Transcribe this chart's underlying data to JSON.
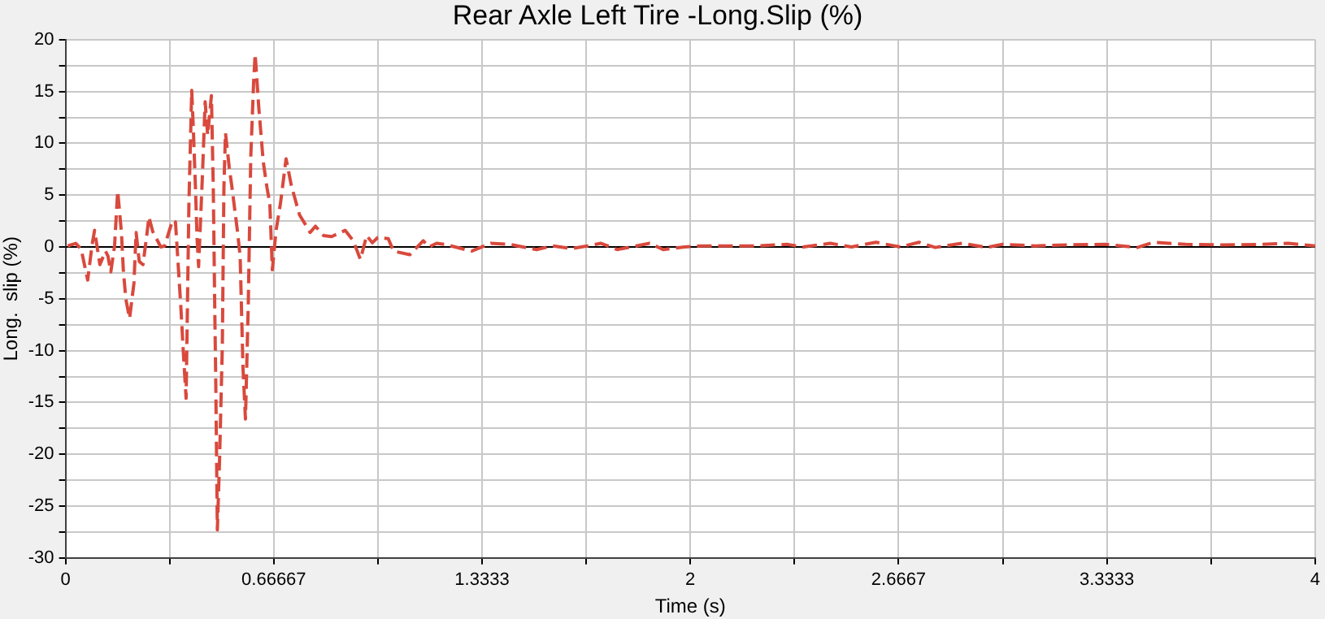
{
  "chart_data": {
    "type": "line",
    "title": "Rear Axle Left Tire -Long.Slip (%)",
    "xlabel": "Time (s)",
    "ylabel": "Long.  slip (%)",
    "xlim": [
      0,
      4
    ],
    "ylim": [
      -30,
      20
    ],
    "xticks": [
      0,
      {
        "value": 0.33333,
        "label": null
      },
      0.66667,
      {
        "value": 1,
        "label": null
      },
      1.3333,
      {
        "value": 1.66667,
        "label": null
      },
      2,
      {
        "value": 2.33333,
        "label": null
      },
      2.6667,
      {
        "value": 3,
        "label": null
      },
      3.3333,
      {
        "value": 3.66667,
        "label": null
      },
      4
    ],
    "yticks": [
      -30,
      {
        "value": -27.5,
        "label": null
      },
      -25,
      {
        "value": -22.5,
        "label": null
      },
      -20,
      {
        "value": -17.5,
        "label": null
      },
      -15,
      {
        "value": -12.5,
        "label": null
      },
      -10,
      {
        "value": -7.5,
        "label": null
      },
      -5,
      {
        "value": -2.5,
        "label": null
      },
      0,
      {
        "value": 2.5,
        "label": null
      },
      5,
      {
        "value": 7.5,
        "label": null
      },
      10,
      {
        "value": 12.5,
        "label": null
      },
      15,
      {
        "value": 17.5,
        "label": null
      },
      20
    ],
    "grid": true,
    "legend": false,
    "marker": "none",
    "line_style": "dashed",
    "ref_lines": [
      {
        "axis": "y",
        "value": 0,
        "color": "#000000"
      }
    ],
    "series": [
      {
        "color": "#d9493d",
        "x": [
          0.007,
          0.033,
          0.05,
          0.064,
          0.071,
          0.085,
          0.093,
          0.11,
          0.128,
          0.136,
          0.145,
          0.157,
          0.167,
          0.179,
          0.185,
          0.193,
          0.205,
          0.219,
          0.226,
          0.236,
          0.248,
          0.26,
          0.267,
          0.279,
          0.305,
          0.317,
          0.343,
          0.352,
          0.369,
          0.378,
          0.386,
          0.395,
          0.404,
          0.409,
          0.416,
          0.421,
          0.426,
          0.438,
          0.447,
          0.455,
          0.467,
          0.473,
          0.478,
          0.481,
          0.486,
          0.493,
          0.502,
          0.507,
          0.512,
          0.524,
          0.533,
          0.55,
          0.559,
          0.568,
          0.576,
          0.585,
          0.593,
          0.602,
          0.607,
          0.619,
          0.633,
          0.645,
          0.654,
          0.662,
          0.674,
          0.688,
          0.706,
          0.723,
          0.749,
          0.783,
          0.8,
          0.826,
          0.852,
          0.895,
          0.921,
          0.944,
          0.964,
          0.982,
          0.999,
          1.033,
          1.05,
          1.102,
          1.145,
          1.163,
          1.188,
          1.214,
          1.3,
          1.361,
          1.421,
          1.508,
          1.559,
          1.62,
          1.671,
          1.714,
          1.766,
          1.827,
          1.87,
          1.913,
          1.982,
          2.034,
          2.12,
          2.206,
          2.309,
          2.361,
          2.448,
          2.516,
          2.594,
          2.672,
          2.732,
          2.784,
          2.87,
          2.948,
          3.0,
          3.103,
          3.207,
          3.327,
          3.431,
          3.483,
          3.586,
          3.707,
          3.828,
          3.914,
          4.0
        ],
        "values": [
          0.1,
          0.35,
          -0.2,
          -2.2,
          -3.2,
          0.2,
          1.6,
          -1.7,
          -0.4,
          -0.9,
          -2.4,
          0.1,
          5.4,
          1.4,
          -2.2,
          -5,
          -6.9,
          -3.5,
          1.4,
          -1.4,
          -1.7,
          1.1,
          2.9,
          1.5,
          0,
          0.1,
          2.6,
          2.4,
          -5.7,
          -10.6,
          -14.6,
          4.2,
          15.1,
          11.5,
          5.7,
          0.9,
          -1.9,
          6.7,
          14,
          10.8,
          14.6,
          5.7,
          -6.5,
          -13.1,
          -27.3,
          -20.7,
          -9.5,
          5.7,
          11,
          7.7,
          5.7,
          1.6,
          -0.9,
          -11.6,
          -16.6,
          -5.5,
          8.7,
          15.8,
          18.6,
          13.3,
          8.2,
          5.7,
          4.2,
          -2.2,
          1.6,
          4.2,
          8.5,
          5.9,
          3.1,
          1.4,
          2,
          1.1,
          1,
          1.6,
          0.6,
          -1.2,
          1.1,
          0.4,
          0.9,
          0.8,
          -0.4,
          -0.75,
          0.6,
          0,
          0.35,
          0.25,
          -0.4,
          0.35,
          0.25,
          -0.25,
          0.1,
          -0.15,
          0.1,
          0.35,
          -0.25,
          0.1,
          0.35,
          -0.25,
          0,
          0.1,
          0.1,
          0.1,
          0.25,
          0,
          0.35,
          0,
          0.45,
          0,
          0.45,
          -0.05,
          0.35,
          -0.05,
          0.25,
          0.1,
          0.2,
          0.25,
          -0.05,
          0.45,
          0.25,
          0.2,
          0.25,
          0.35,
          0.1
        ]
      }
    ]
  }
}
